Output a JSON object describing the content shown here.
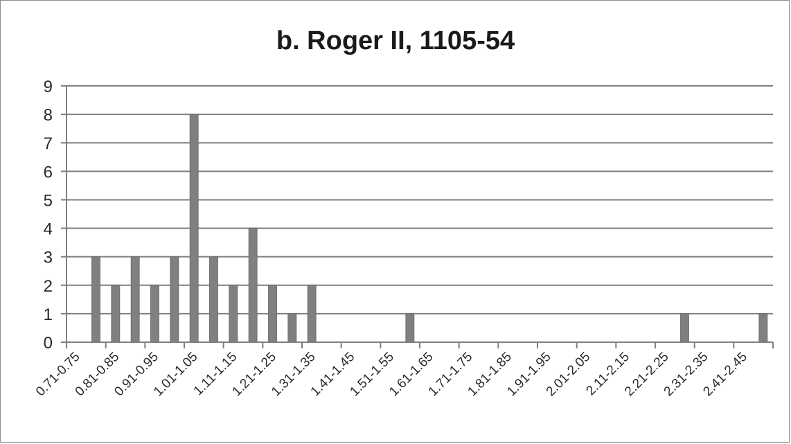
{
  "chart_data": {
    "type": "bar",
    "title": "b. Roger II, 1105-54",
    "xlabel": "",
    "ylabel": "",
    "ylim": [
      0,
      9
    ],
    "yticks": [
      0,
      1,
      2,
      3,
      4,
      5,
      6,
      7,
      8,
      9
    ],
    "grid": true,
    "legend": "none",
    "bar_color": "#808080",
    "categories": [
      "0.71-0.75",
      "0.81-0.85",
      "0.91-0.95",
      "1.01-1.05",
      "1.11-1.15",
      "1.21-1.25",
      "1.31-1.35",
      "1.41-1.45",
      "1.51-1.55",
      "1.61-1.65",
      "1.71-1.75",
      "1.81-1.85",
      "1.91-1.95",
      "2.01-2.05",
      "2.11-2.15",
      "2.21-2.25",
      "2.31-2.35",
      "2.41-2.45"
    ],
    "bins": [
      {
        "range": "0.76-0.80",
        "value": 3
      },
      {
        "range": "0.81-0.85",
        "value": 2
      },
      {
        "range": "0.86-0.90",
        "value": 3
      },
      {
        "range": "0.91-0.95",
        "value": 2
      },
      {
        "range": "0.96-1.00",
        "value": 3
      },
      {
        "range": "1.01-1.05",
        "value": 8
      },
      {
        "range": "1.06-1.10",
        "value": 3
      },
      {
        "range": "1.11-1.15",
        "value": 2
      },
      {
        "range": "1.16-1.20",
        "value": 4
      },
      {
        "range": "1.21-1.25",
        "value": 2
      },
      {
        "range": "1.26-1.30",
        "value": 1
      },
      {
        "range": "1.31-1.35",
        "value": 2
      },
      {
        "range": "1.56-1.60",
        "value": 1
      },
      {
        "range": "2.26-2.30",
        "value": 1
      },
      {
        "range": "2.46-2.50",
        "value": 1
      }
    ]
  }
}
